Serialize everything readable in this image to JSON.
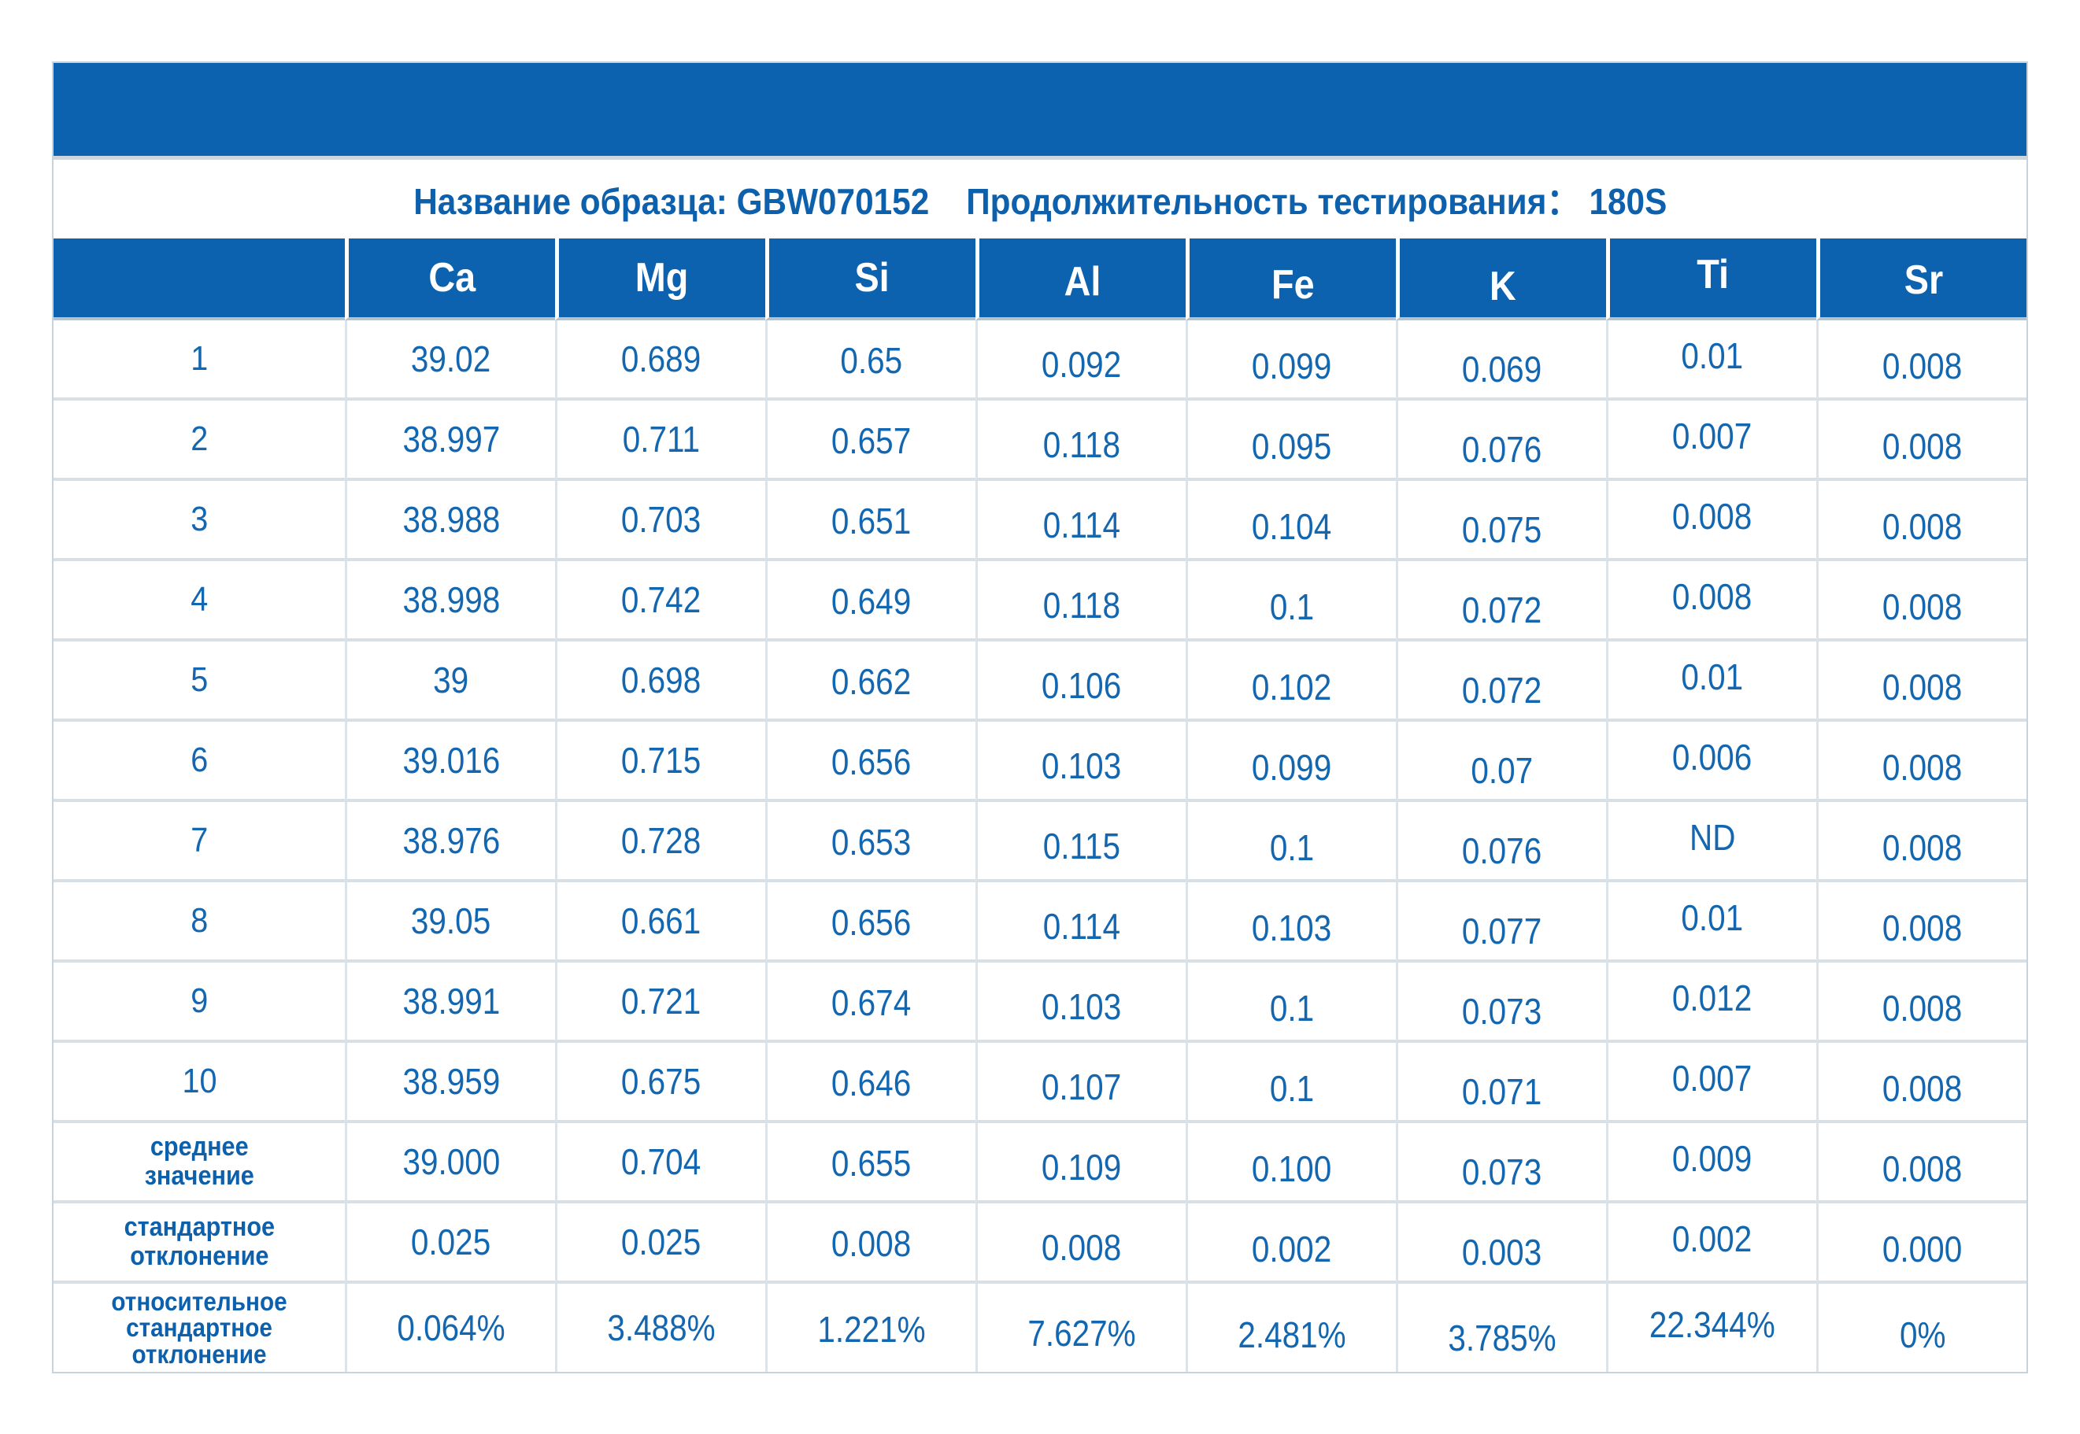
{
  "colors": {
    "brand_blue": "#0c62ae",
    "data_text_blue": "#1366b0",
    "label_blue": "#0d60ac"
  },
  "title": "Название образца: GBW070152    Продолжительность тестирования： 180S",
  "table": {
    "columns": [
      "Ca",
      "Mg",
      "Si",
      "Al",
      "Fe",
      "K",
      "Ti",
      "Sr"
    ],
    "rows": [
      {
        "label": "1",
        "values": [
          "39.02",
          "0.689",
          "0.65",
          "0.092",
          "0.099",
          "0.069",
          "0.01",
          "0.008"
        ]
      },
      {
        "label": "2",
        "values": [
          "38.997",
          "0.711",
          "0.657",
          "0.118",
          "0.095",
          "0.076",
          "0.007",
          "0.008"
        ]
      },
      {
        "label": "3",
        "values": [
          "38.988",
          "0.703",
          "0.651",
          "0.114",
          "0.104",
          "0.075",
          "0.008",
          "0.008"
        ]
      },
      {
        "label": "4",
        "values": [
          "38.998",
          "0.742",
          "0.649",
          "0.118",
          "0.1",
          "0.072",
          "0.008",
          "0.008"
        ]
      },
      {
        "label": "5",
        "values": [
          "39",
          "0.698",
          "0.662",
          "0.106",
          "0.102",
          "0.072",
          "0.01",
          "0.008"
        ]
      },
      {
        "label": "6",
        "values": [
          "39.016",
          "0.715",
          "0.656",
          "0.103",
          "0.099",
          "0.07",
          "0.006",
          "0.008"
        ]
      },
      {
        "label": "7",
        "values": [
          "38.976",
          "0.728",
          "0.653",
          "0.115",
          "0.1",
          "0.076",
          "ND",
          "0.008"
        ]
      },
      {
        "label": "8",
        "values": [
          "39.05",
          "0.661",
          "0.656",
          "0.114",
          "0.103",
          "0.077",
          "0.01",
          "0.008"
        ]
      },
      {
        "label": "9",
        "values": [
          "38.991",
          "0.721",
          "0.674",
          "0.103",
          "0.1",
          "0.073",
          "0.012",
          "0.008"
        ]
      },
      {
        "label": "10",
        "values": [
          "38.959",
          "0.675",
          "0.646",
          "0.107",
          "0.1",
          "0.071",
          "0.007",
          "0.008"
        ]
      },
      {
        "label": "среднее\nзначение",
        "values": [
          "39.000",
          "0.704",
          "0.655",
          "0.109",
          "0.100",
          "0.073",
          "0.009",
          "0.008"
        ]
      },
      {
        "label": "стандартное\nотклонение",
        "values": [
          "0.025",
          "0.025",
          "0.008",
          "0.008",
          "0.002",
          "0.003",
          "0.002",
          "0.000"
        ]
      },
      {
        "label": "относительное\nстандартное\nотклонение",
        "values": [
          "0.064%",
          "3.488%",
          "1.221%",
          "7.627%",
          "2.481%",
          "3.785%",
          "22.344%",
          "0%"
        ]
      }
    ]
  }
}
